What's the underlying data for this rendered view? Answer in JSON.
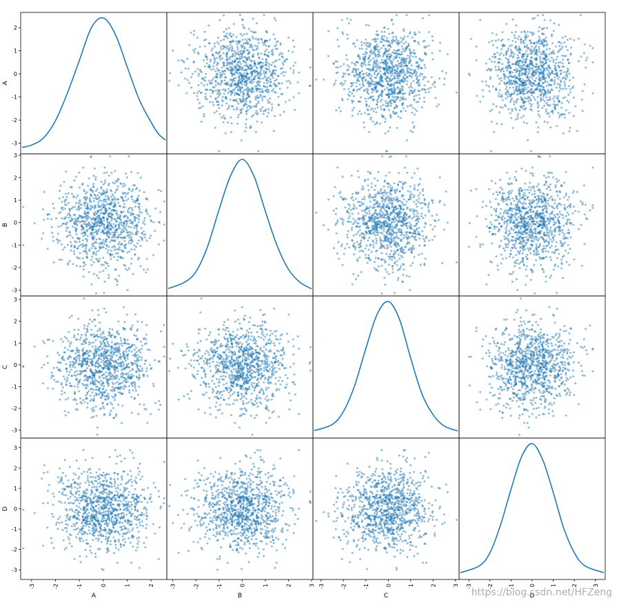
{
  "chart_data": {
    "type": "scatter",
    "title": "",
    "variables": [
      "A",
      "B",
      "C",
      "D"
    ],
    "diagonal": "kde",
    "point_color": "#1f77b4",
    "line_color": "#1f77b4",
    "n_points": 1000,
    "axis_ranges": {
      "A": [
        -3.4,
        2.6
      ],
      "B": [
        -3.2,
        3.0
      ],
      "C": [
        -3.3,
        3.1
      ],
      "D": [
        -3.4,
        3.4
      ]
    },
    "ticks": {
      "A": [
        -3,
        -2,
        -1,
        0,
        1,
        2
      ],
      "B": [
        -3,
        -2,
        -1,
        0,
        1,
        2,
        3
      ],
      "C": [
        -3,
        -2,
        -1,
        0,
        1,
        2,
        3
      ],
      "D": [
        -3,
        -2,
        -1,
        0,
        1,
        2,
        3
      ]
    },
    "kde": {
      "A": [
        [
          -3.4,
          0.003
        ],
        [
          -3.0,
          0.01
        ],
        [
          -2.5,
          0.032
        ],
        [
          -2.0,
          0.085
        ],
        [
          -1.5,
          0.17
        ],
        [
          -1.0,
          0.27
        ],
        [
          -0.5,
          0.37
        ],
        [
          0.0,
          0.4
        ],
        [
          0.5,
          0.35
        ],
        [
          1.0,
          0.25
        ],
        [
          1.5,
          0.15
        ],
        [
          2.0,
          0.08
        ],
        [
          2.3,
          0.045
        ],
        [
          2.6,
          0.025
        ]
      ],
      "B": [
        [
          -3.2,
          0.006
        ],
        [
          -2.5,
          0.025
        ],
        [
          -2.0,
          0.058
        ],
        [
          -1.5,
          0.135
        ],
        [
          -1.0,
          0.25
        ],
        [
          -0.5,
          0.355
        ],
        [
          0.0,
          0.405
        ],
        [
          0.5,
          0.355
        ],
        [
          1.0,
          0.245
        ],
        [
          1.5,
          0.14
        ],
        [
          2.0,
          0.065
        ],
        [
          2.5,
          0.025
        ],
        [
          3.0,
          0.005
        ]
      ],
      "C": [
        [
          -3.3,
          0.006
        ],
        [
          -2.5,
          0.025
        ],
        [
          -2.0,
          0.065
        ],
        [
          -1.5,
          0.145
        ],
        [
          -1.0,
          0.26
        ],
        [
          -0.5,
          0.365
        ],
        [
          0.0,
          0.405
        ],
        [
          0.5,
          0.35
        ],
        [
          1.0,
          0.23
        ],
        [
          1.5,
          0.12
        ],
        [
          2.0,
          0.055
        ],
        [
          2.5,
          0.02
        ],
        [
          3.1,
          0.005
        ]
      ],
      "D": [
        [
          -3.4,
          0.004
        ],
        [
          -2.5,
          0.025
        ],
        [
          -2.0,
          0.065
        ],
        [
          -1.5,
          0.15
        ],
        [
          -1.0,
          0.26
        ],
        [
          -0.5,
          0.36
        ],
        [
          0.0,
          0.4
        ],
        [
          0.5,
          0.35
        ],
        [
          1.0,
          0.25
        ],
        [
          1.5,
          0.14
        ],
        [
          2.0,
          0.065
        ],
        [
          2.5,
          0.025
        ],
        [
          3.4,
          0.004
        ]
      ]
    }
  },
  "watermark": "https://blog.csdn.net/HFZeng"
}
